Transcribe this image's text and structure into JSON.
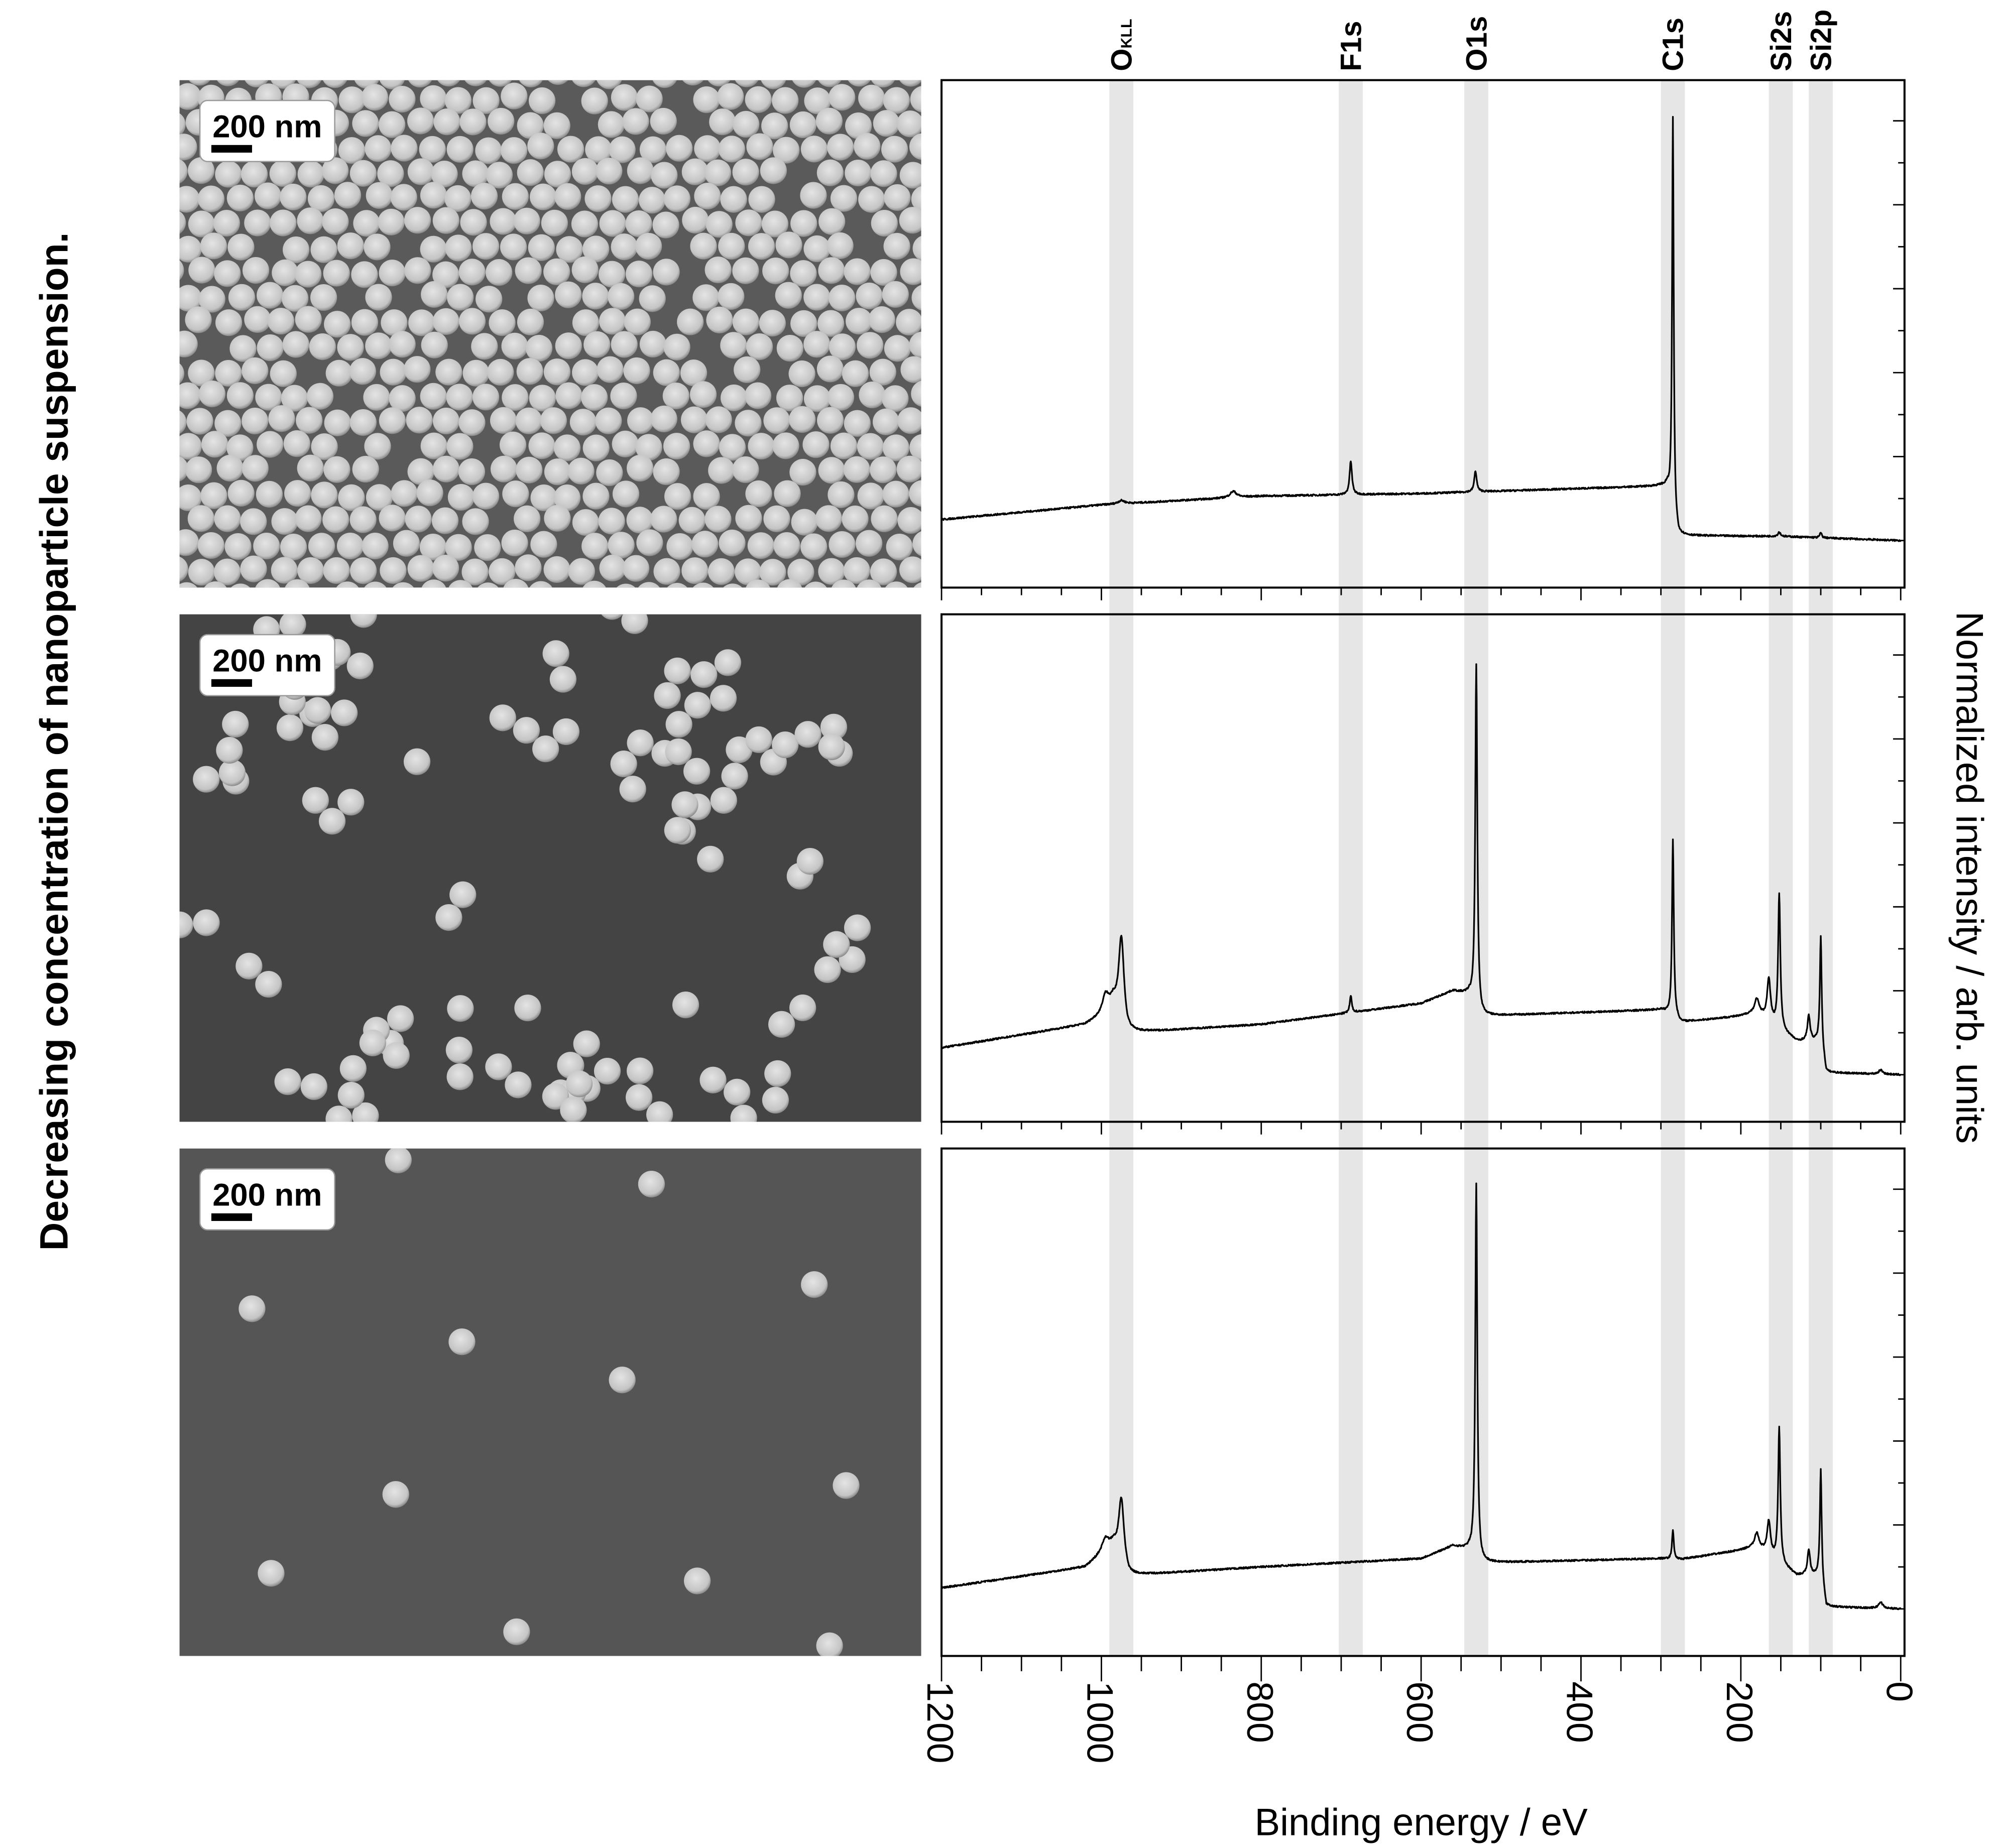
{
  "figure": {
    "side_title": "Decreasing concentration of nanoparticle suspension.",
    "scale_bar_label": "200 nm",
    "sem_panels": [
      {
        "scale_bar": "200 nm",
        "coverage": "dense monolayer"
      },
      {
        "scale_bar": "200 nm",
        "coverage": "small clusters"
      },
      {
        "scale_bar": "200 nm",
        "coverage": "isolated particles"
      }
    ],
    "colors": {
      "band": "#e6e6e6",
      "line": "#000000",
      "sem_background_dark": "#4a4a4a",
      "particle": "#d8d8d8"
    }
  },
  "chart_data": {
    "type": "line",
    "xlabel": "Binding energy / eV",
    "ylabel": "Normalized intensity / arb. units",
    "xlim": [
      1200,
      0
    ],
    "ylim": [
      0,
      1
    ],
    "x_ticks": [
      "1200",
      "1000",
      "800",
      "600",
      "400",
      "200",
      "0"
    ],
    "x_tick_values": [
      1200,
      1000,
      800,
      600,
      400,
      200,
      0
    ],
    "x_minor_step": 50,
    "y_tick_labels_shown": false,
    "y_major_step": 0.2,
    "y_minor_step": 0.1,
    "grid": false,
    "bands": [
      {
        "label": "O",
        "sub": "KLL",
        "center": 975,
        "from": 990,
        "to": 960
      },
      {
        "label": "F1s",
        "sub": "",
        "center": 688,
        "from": 703,
        "to": 673
      },
      {
        "label": "O1s",
        "sub": "",
        "center": 531,
        "from": 546,
        "to": 516
      },
      {
        "label": "C1s",
        "sub": "",
        "center": 285,
        "from": 300,
        "to": 270
      },
      {
        "label": "Si2s",
        "sub": "",
        "center": 150,
        "from": 165,
        "to": 135
      },
      {
        "label": "Si2p",
        "sub": "",
        "center": 100,
        "from": 115,
        "to": 85
      }
    ],
    "panels": [
      {
        "background": [
          [
            1200,
            0.05
          ],
          [
            1000,
            0.085
          ],
          [
            800,
            0.106
          ],
          [
            600,
            0.112
          ],
          [
            300,
            0.13
          ],
          [
            292,
            0.125
          ],
          [
            283,
            0.04
          ],
          [
            278,
            0.012
          ],
          [
            150,
            0.01
          ],
          [
            0,
            0.0
          ]
        ],
        "peaks": [
          [
            285,
            0.95,
            1.2
          ],
          [
            688,
            0.08,
            1.8
          ],
          [
            532,
            0.05,
            1.8
          ],
          [
            835,
            0.015,
            5
          ],
          [
            975,
            0.008,
            5
          ],
          [
            152,
            0.01,
            2
          ],
          [
            100,
            0.012,
            1.5
          ]
        ]
      },
      {
        "background": [
          [
            1200,
            0.064
          ],
          [
            1020,
            0.12
          ],
          [
            1000,
            0.14
          ],
          [
            985,
            0.17
          ],
          [
            968,
            0.1
          ],
          [
            800,
            0.12
          ],
          [
            600,
            0.17
          ],
          [
            560,
            0.2
          ],
          [
            540,
            0.19
          ],
          [
            525,
            0.14
          ],
          [
            300,
            0.155
          ],
          [
            283,
            0.14
          ],
          [
            275,
            0.125
          ],
          [
            200,
            0.14
          ],
          [
            180,
            0.15
          ],
          [
            160,
            0.12
          ],
          [
            130,
            0.08
          ],
          [
            100,
            0.08
          ],
          [
            93,
            0.005
          ],
          [
            0,
            0.0
          ]
        ],
        "peaks": [
          [
            995,
            0.04,
            5
          ],
          [
            975,
            0.2,
            4
          ],
          [
            688,
            0.04,
            1.5
          ],
          [
            531,
            0.82,
            1.5
          ],
          [
            285,
            0.42,
            1.3
          ],
          [
            180,
            0.03,
            3
          ],
          [
            165,
            0.1,
            2.5
          ],
          [
            152,
            0.32,
            1.6
          ],
          [
            115,
            0.06,
            2
          ],
          [
            100,
            0.25,
            1.3
          ],
          [
            25,
            0.01,
            3
          ]
        ]
      },
      {
        "background": [
          [
            1200,
            0.05
          ],
          [
            1020,
            0.1
          ],
          [
            1000,
            0.13
          ],
          [
            985,
            0.15
          ],
          [
            966,
            0.08
          ],
          [
            800,
            0.1
          ],
          [
            600,
            0.12
          ],
          [
            560,
            0.15
          ],
          [
            540,
            0.14
          ],
          [
            525,
            0.11
          ],
          [
            300,
            0.12
          ],
          [
            275,
            0.118
          ],
          [
            200,
            0.14
          ],
          [
            180,
            0.15
          ],
          [
            160,
            0.12
          ],
          [
            130,
            0.08
          ],
          [
            100,
            0.08
          ],
          [
            93,
            0.005
          ],
          [
            0,
            0.0
          ]
        ],
        "peaks": [
          [
            995,
            0.03,
            5
          ],
          [
            975,
            0.15,
            4
          ],
          [
            531,
            0.89,
            1.5
          ],
          [
            285,
            0.07,
            1.3
          ],
          [
            180,
            0.03,
            3
          ],
          [
            165,
            0.08,
            2.5
          ],
          [
            152,
            0.32,
            1.6
          ],
          [
            115,
            0.06,
            2
          ],
          [
            100,
            0.25,
            1.3
          ],
          [
            25,
            0.015,
            3
          ]
        ]
      }
    ]
  }
}
